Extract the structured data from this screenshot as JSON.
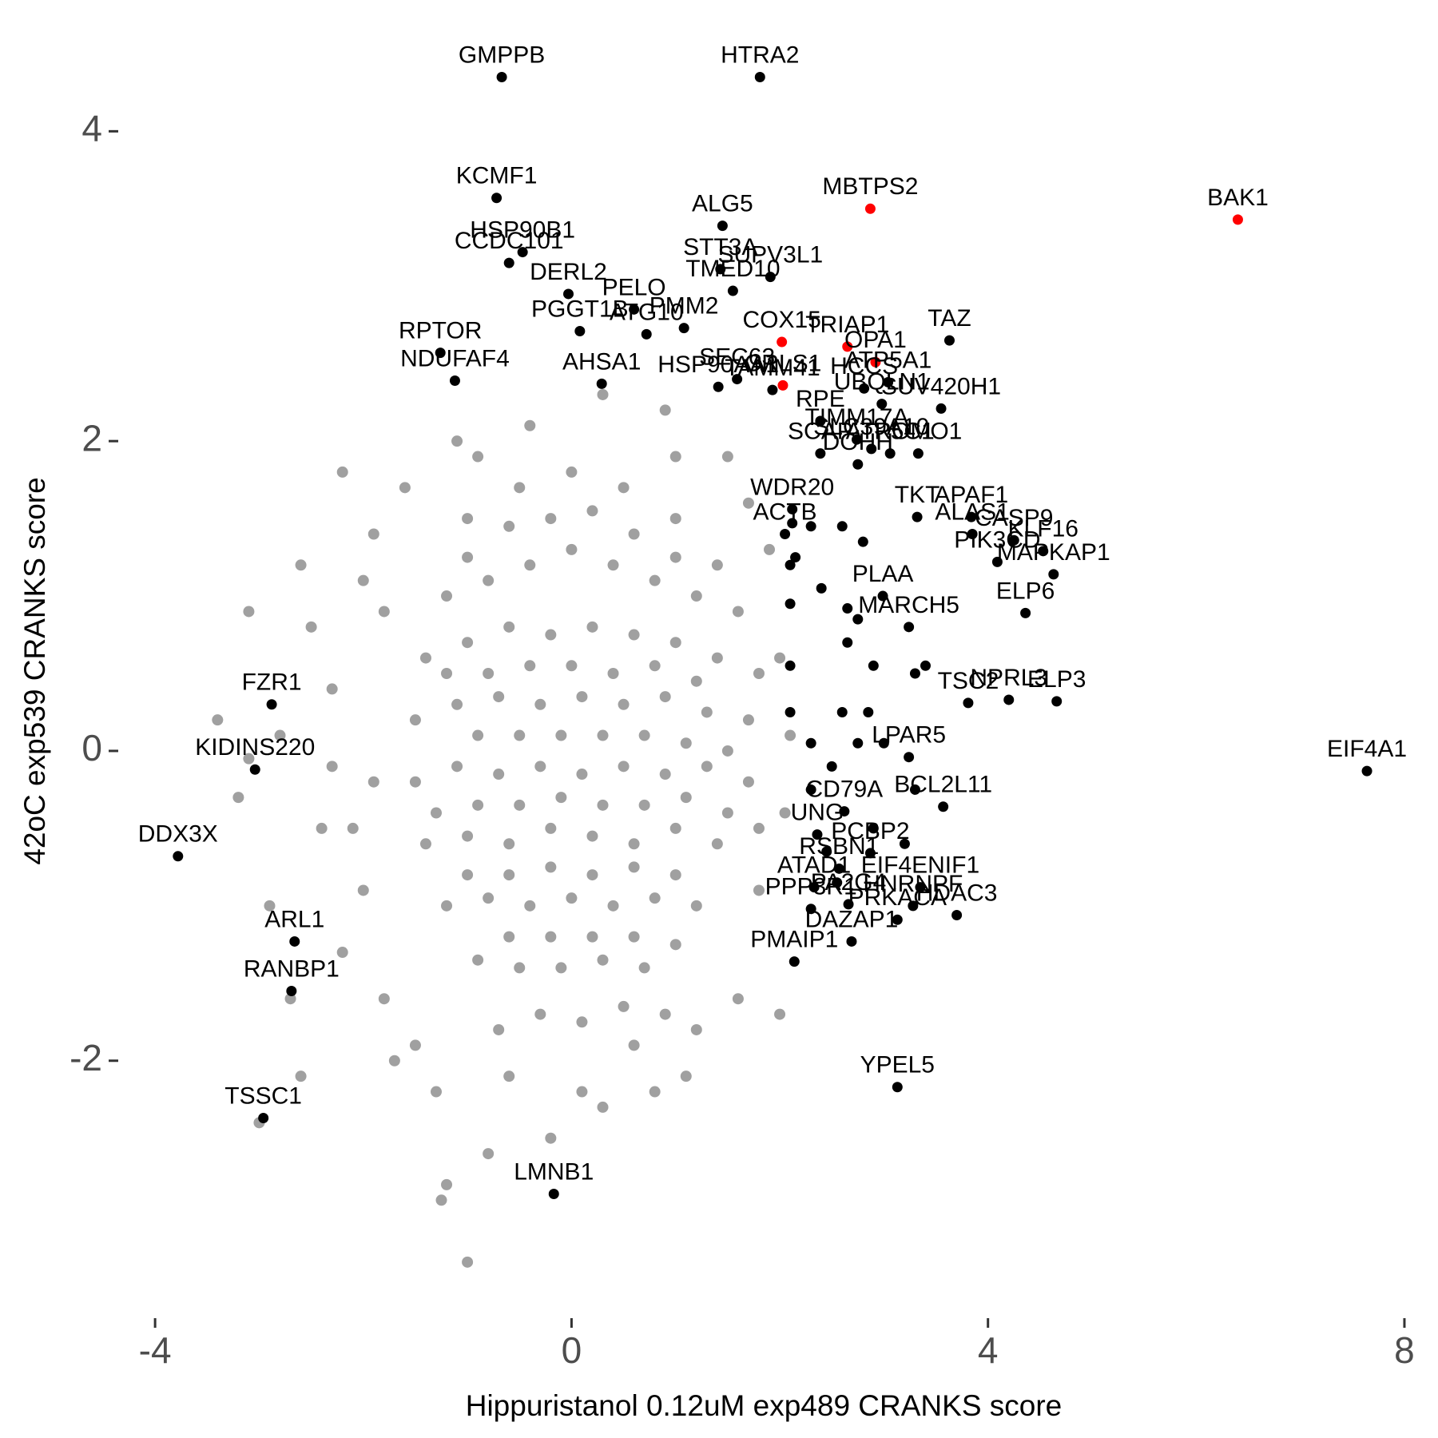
{
  "chart_data": {
    "type": "scatter",
    "x_label": "Hippuristanol 0.12uM exp489 CRANKS score",
    "y_label": "42oC exp539 CRANKS score",
    "xlim": [
      -4.4,
      8.1
    ],
    "ylim": [
      -3.6,
      4.6
    ],
    "xticks": [
      -4,
      0,
      4,
      8
    ],
    "yticks": [
      -2,
      0,
      2,
      4
    ],
    "grid": false,
    "series": [
      {
        "color": "#a0a0a0",
        "x": [
          -1,
          -0.5,
          0,
          0.5,
          1,
          1.4,
          -1.2,
          -0.8,
          -0.4,
          0,
          0.4,
          0.8,
          1.2,
          1.6,
          -1.4,
          -1,
          -0.6,
          -0.2,
          0.2,
          0.6,
          1,
          1.4,
          1.8,
          -1.5,
          -1.1,
          -0.7,
          -0.3,
          0.1,
          0.5,
          0.9,
          1.3,
          1.7,
          -1.5,
          -1.1,
          -0.7,
          -0.3,
          0.1,
          0.5,
          0.9,
          1.3,
          1.7,
          -1.4,
          -1,
          -0.6,
          -0.2,
          0.2,
          0.6,
          1,
          1.4,
          1.8,
          -1.2,
          -0.8,
          -0.4,
          0,
          0.4,
          0.8,
          1.2,
          -0.9,
          -0.5,
          -0.1,
          0.3,
          0.7,
          -0.3,
          0.1,
          0.5,
          -2.2,
          -2.6,
          -3.1,
          -2.3,
          -2.8,
          -3.2,
          -2.4,
          -2.9,
          -2.2,
          -2.7,
          -2.6,
          -3,
          -1.9,
          -1.8,
          -1.9,
          -2,
          -1.8,
          -1.7,
          -1.3,
          -1.2,
          -0.8,
          -0.2,
          0.3,
          0.8,
          1.2,
          1.6,
          2,
          2.05,
          2,
          1.9,
          1.5,
          0.9,
          0.3,
          -0.4,
          -1.1,
          -1.6,
          -2.3,
          -3.4,
          -1.5,
          -0.6,
          0.6,
          1.8,
          2.1,
          -1,
          -1.25,
          -3.1,
          -2.5,
          0.1,
          1,
          -0.9,
          -2,
          -2.1,
          1.7,
          -0.7,
          0.9,
          1.1,
          -0.8,
          -0.4,
          0,
          0.4,
          0.8,
          1.2,
          -1.2,
          -0.9,
          -0.5,
          -0.1,
          0.3,
          0.7,
          1.1,
          1.5,
          -1.3,
          -0.9,
          -0.5,
          -0.1,
          0.3,
          0.7,
          1.1,
          1.5,
          -1,
          -0.6,
          -0.2,
          0.2,
          0.6,
          1,
          -1,
          -0.6,
          -0.2,
          0.2,
          0.6,
          1,
          -0.6,
          -0.2,
          0.2,
          0.6,
          1
        ],
        "y": [
          1.5,
          1.7,
          1.8,
          1.7,
          1.5,
          1.2,
          1,
          1.1,
          1.2,
          1.3,
          1.2,
          1.1,
          1,
          0.9,
          0.6,
          0.7,
          0.8,
          0.75,
          0.8,
          0.75,
          0.7,
          0.6,
          0.5,
          0.2,
          0.3,
          0.35,
          0.3,
          0.35,
          0.3,
          0.35,
          0.25,
          0.2,
          -0.2,
          -0.1,
          -0.15,
          -0.1,
          -0.15,
          -0.1,
          -0.15,
          -0.1,
          -0.2,
          -0.6,
          -0.55,
          -0.6,
          -0.5,
          -0.55,
          -0.6,
          -0.5,
          -0.6,
          -0.5,
          -1,
          -0.95,
          -1,
          -0.95,
          -1,
          -0.95,
          -1,
          -1.35,
          -1.4,
          -1.4,
          -1.35,
          -1.4,
          -1.7,
          -1.75,
          -1.65,
          1.8,
          1.2,
          0.9,
          0.4,
          0.1,
          -0.3,
          -0.5,
          -1,
          -1.3,
          -1.6,
          -2.1,
          -2.4,
          1.4,
          0.9,
          -0.2,
          -0.9,
          -1.6,
          -2,
          -2.2,
          -2.8,
          -2.6,
          -2.5,
          -2.3,
          -2.2,
          -1.8,
          -1.6,
          -1.7,
          -0.4,
          0.6,
          1.3,
          1.9,
          2.2,
          2.3,
          2.1,
          2,
          1.7,
          -0.1,
          0.2,
          -1.9,
          -2.1,
          -1.9,
          -0.9,
          0.1,
          -3.3,
          -2.9,
          -0.05,
          0.8,
          -2.2,
          1.9,
          1.9,
          1.1,
          -0.5,
          1.6,
          -1.8,
          -1.7,
          -2.1,
          0.5,
          0.55,
          0.55,
          0.5,
          0.55,
          0.45,
          0.5,
          0.1,
          0.1,
          0.1,
          0.1,
          0.1,
          0.05,
          0,
          -0.4,
          -0.35,
          -0.35,
          -0.3,
          -0.35,
          -0.35,
          -0.3,
          -0.4,
          -0.8,
          -0.8,
          -0.75,
          -0.8,
          -0.75,
          -0.8,
          1.25,
          1.45,
          1.5,
          1.55,
          1.4,
          1.25,
          -1.2,
          -1.2,
          -1.2,
          -1.2,
          -1.25
        ]
      },
      {
        "color": "#000000",
        "labels": [
          "GMPPB",
          "HTRA2",
          "KCMF1",
          "ALG5",
          "HSP90B1",
          "STT3A",
          "CCDC101",
          "DERL2",
          "TMED10",
          "PMM2",
          "SUPV3L1",
          "PELO",
          "RPTOR",
          "NDUFAF4",
          "PGGT1B",
          "ATG10",
          "AHSA1",
          "HSP90AA1",
          "SEC63",
          "TAMM41",
          "RPE",
          "HCCS",
          "UBQLN1",
          "ATP5A1",
          "TAZ",
          "SUV420H1",
          "ROMO1",
          "TIMM17A",
          "SCAP",
          "DOHH",
          "SLC39A10",
          "ATP5C1",
          "WDR20",
          "TKT",
          "APAF1",
          "ALAS1",
          "CASP9",
          "ACTB",
          "KLF16",
          "MAPKAP1",
          "PIK3CD",
          "PLAA",
          "ELP6",
          "MARCH5",
          "NPRL3",
          "TSC2",
          "ELP3",
          "EIF4A1",
          "LPAR5",
          "BCL2L11",
          "CD79A",
          "UNG",
          "PCBP2",
          "EIF4ENIF1",
          "RSBN1",
          "ATAD1",
          "HNRNPF",
          "HDAC3",
          "PPP3R1",
          "PA2G4",
          "PRKACA",
          "DAZAP1",
          "PMAIP1",
          "YPEL5",
          "FZR1",
          "KIDINS220",
          "DDX3X",
          "ARL1",
          "RANBP1",
          "TSSC1",
          "LMNB1",
          null,
          null,
          null,
          null,
          null,
          null,
          null,
          null,
          null,
          null,
          null,
          null,
          null,
          null,
          null,
          null,
          null,
          null,
          null,
          null,
          null,
          null,
          null,
          null,
          null,
          null,
          null,
          null
        ],
        "x": [
          -0.67,
          1.81,
          -0.72,
          1.45,
          -0.47,
          1.43,
          -0.6,
          -0.03,
          1.55,
          1.08,
          1.91,
          0.6,
          -1.26,
          -1.12,
          0.08,
          0.72,
          0.29,
          1.41,
          1.59,
          1.93,
          2.39,
          2.81,
          2.98,
          3.04,
          3.63,
          3.55,
          3.33,
          2.74,
          2.39,
          2.75,
          2.88,
          3.06,
          2.12,
          3.32,
          3.84,
          3.85,
          4.25,
          2.05,
          4.53,
          4.63,
          4.09,
          2.99,
          4.36,
          3.24,
          4.2,
          3.81,
          4.66,
          7.64,
          3.24,
          3.57,
          2.62,
          2.36,
          2.87,
          3.35,
          2.57,
          2.33,
          3.28,
          3.7,
          2.3,
          2.66,
          3.13,
          2.69,
          2.14,
          3.13,
          -2.88,
          -3.04,
          -3.78,
          -2.66,
          -2.69,
          -2.96,
          -0.17,
          2.12,
          2.3,
          2.6,
          2.8,
          2.1,
          2.4,
          2.65,
          2.1,
          2.75,
          2.65,
          2.1,
          2.9,
          3.3,
          2.1,
          2.6,
          2.85,
          2.3,
          2.75,
          3.0,
          2.5,
          2.3,
          2.9,
          2.45,
          2.55,
          3.2,
          2.15,
          3.4,
          3.3
        ],
        "y": [
          4.35,
          4.35,
          3.57,
          3.39,
          3.22,
          3.11,
          3.15,
          2.95,
          2.97,
          2.73,
          3.06,
          2.85,
          2.57,
          2.39,
          2.71,
          2.69,
          2.37,
          2.35,
          2.4,
          2.33,
          2.13,
          2.34,
          2.24,
          2.38,
          2.65,
          2.21,
          1.92,
          2.01,
          1.92,
          1.85,
          1.95,
          1.92,
          1.56,
          1.51,
          1.51,
          1.4,
          1.36,
          1.4,
          1.29,
          1.14,
          1.22,
          1,
          0.89,
          0.8,
          0.33,
          0.31,
          0.32,
          -0.13,
          -0.04,
          -0.36,
          -0.39,
          -0.54,
          -0.66,
          -0.88,
          -0.76,
          -0.88,
          -1,
          -1.06,
          -1.02,
          -0.99,
          -1.09,
          -1.23,
          -1.36,
          -2.17,
          0.3,
          -0.12,
          -0.68,
          -1.23,
          -1.55,
          -2.37,
          -2.86,
          1.47,
          1.45,
          1.45,
          1.35,
          1.2,
          1.05,
          0.92,
          0.95,
          0.85,
          0.7,
          0.55,
          0.55,
          0.5,
          0.25,
          0.25,
          0.25,
          0.05,
          0.05,
          0.05,
          -0.1,
          -0.25,
          -0.5,
          -0.65,
          -0.85,
          -0.6,
          1.25,
          0.55,
          -0.25
        ]
      },
      {
        "color": "#ff0000",
        "labels": [
          "MBTPS2",
          "BAK1",
          "COX15",
          "TRIAP1",
          "OPA1",
          "CRLS1"
        ],
        "x": [
          2.87,
          6.4,
          2.02,
          2.65,
          2.92,
          2.03
        ],
        "y": [
          3.5,
          3.43,
          2.64,
          2.61,
          2.51,
          2.36
        ]
      }
    ]
  }
}
